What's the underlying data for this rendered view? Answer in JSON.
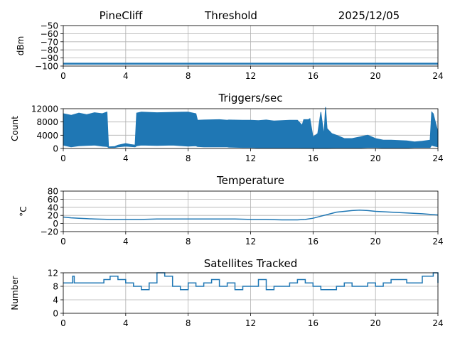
{
  "header": {
    "station": "PineCliff",
    "title": "Threshold",
    "date": "2025/12/05"
  },
  "colors": {
    "series": "#1f77b4",
    "grid": "#b0b0b0",
    "axes": "#000000"
  },
  "chart_data": [
    {
      "type": "line",
      "title": "",
      "ylabel": "dBm",
      "xlabel": "",
      "xlim": [
        0,
        24
      ],
      "ylim": [
        -100,
        -50
      ],
      "xticks": [
        0,
        4,
        8,
        12,
        16,
        20,
        24
      ],
      "yticks": [
        -100,
        -90,
        -80,
        -70,
        -60,
        -50
      ],
      "grid": true,
      "series": [
        {
          "x": [
            0,
            2,
            4,
            6,
            8,
            10,
            12,
            14,
            16,
            18,
            20,
            22,
            24
          ],
          "values": [
            -97,
            -97,
            -97,
            -97,
            -97,
            -97,
            -97,
            -97,
            -97,
            -97,
            -97,
            -97,
            -97
          ]
        }
      ]
    },
    {
      "type": "area",
      "title": "Triggers/sec",
      "ylabel": "Count",
      "xlabel": "",
      "xlim": [
        0,
        24
      ],
      "ylim": [
        0,
        12000
      ],
      "xticks": [
        0,
        4,
        8,
        12,
        16,
        20,
        24
      ],
      "yticks": [
        0,
        4000,
        8000,
        12000
      ],
      "grid": true,
      "series": [
        {
          "x": [
            0,
            0.5,
            1,
            1.5,
            2,
            2.5,
            2.8,
            2.9,
            3.3,
            3.5,
            4,
            4.3,
            4.6,
            4.7,
            5,
            6,
            7,
            8,
            8.5,
            8.6,
            9,
            10,
            10.5,
            10.6,
            11.5,
            12,
            12.5,
            13,
            13.5,
            14,
            14.5,
            15,
            15.3,
            15.4,
            15.7,
            15.8,
            16,
            16.3,
            16.5,
            16.7,
            16.8,
            16.9,
            17.2,
            17.5,
            18,
            18.5,
            19,
            19.5,
            20,
            20.5,
            21,
            21.5,
            22,
            22.5,
            23,
            23.5,
            23.6,
            23.7,
            24
          ],
          "values": [
            10500,
            10000,
            10700,
            10200,
            10800,
            10500,
            11000,
            500,
            600,
            1000,
            1500,
            1200,
            1000,
            10700,
            11000,
            10800,
            10900,
            11000,
            10500,
            8500,
            8600,
            8700,
            8500,
            8600,
            8500,
            8500,
            8400,
            8600,
            8300,
            8400,
            8500,
            8500,
            7000,
            8700,
            8700,
            9000,
            3500,
            4500,
            11000,
            4000,
            12500,
            6000,
            4500,
            4000,
            3000,
            3000,
            3500,
            4000,
            3000,
            2500,
            2500,
            2400,
            2300,
            2000,
            2200,
            2500,
            11000,
            10500,
            5000
          ],
          "lows": [
            1000,
            500,
            800,
            900,
            1000,
            700,
            600,
            300,
            300,
            500,
            700,
            600,
            500,
            800,
            1000,
            900,
            1000,
            700,
            800,
            600,
            500,
            500,
            500,
            400,
            300,
            300,
            200,
            200,
            200,
            200,
            200,
            200,
            100,
            100,
            100,
            100,
            0,
            0,
            0,
            0,
            0,
            0,
            100,
            200,
            200,
            200,
            200,
            300,
            300,
            200,
            200,
            200,
            200,
            300,
            300,
            300,
            1000,
            800,
            500
          ]
        }
      ]
    },
    {
      "type": "line",
      "title": "Temperature",
      "ylabel": "°C",
      "xlabel": "",
      "xlim": [
        0,
        24
      ],
      "ylim": [
        -20,
        80
      ],
      "xticks": [
        0,
        4,
        8,
        12,
        16,
        20,
        24
      ],
      "yticks": [
        -20,
        0,
        20,
        40,
        60,
        80
      ],
      "grid": true,
      "series": [
        {
          "x": [
            0,
            0.5,
            1,
            1.5,
            2,
            3,
            4,
            5,
            6,
            7,
            8,
            9,
            10,
            11,
            12,
            13,
            14,
            15,
            15.5,
            16,
            16.5,
            17,
            17.5,
            18,
            18.5,
            19,
            19.5,
            20,
            21,
            22,
            23,
            24
          ],
          "values": [
            16,
            14,
            13,
            12,
            11,
            10,
            10,
            10,
            11,
            11,
            11,
            11,
            11,
            11,
            10,
            10,
            9,
            9,
            10,
            13,
            18,
            23,
            28,
            30,
            32,
            33,
            32,
            30,
            28,
            26,
            24,
            21
          ]
        }
      ]
    },
    {
      "type": "line",
      "title": "Satellites Tracked",
      "ylabel": "Number",
      "xlabel": "",
      "xlim": [
        0,
        24
      ],
      "ylim": [
        0,
        12
      ],
      "xticks": [
        0,
        4,
        8,
        12,
        16,
        20,
        24
      ],
      "yticks": [
        0,
        4,
        8,
        12
      ],
      "grid": true,
      "series": [
        {
          "x": [
            0,
            0.5,
            0.6,
            0.7,
            1,
            2,
            2.6,
            3,
            3.5,
            4,
            4.5,
            5,
            5.5,
            6,
            6.5,
            7,
            7.5,
            8,
            8.5,
            9,
            9.5,
            10,
            10.5,
            11,
            11.5,
            12,
            12.5,
            13,
            13.5,
            14,
            14.5,
            15,
            15.5,
            16,
            16.5,
            17,
            17.5,
            18,
            18.5,
            19,
            19.5,
            20,
            20.5,
            21,
            21.5,
            22,
            22.5,
            23,
            23.5,
            23.7,
            24
          ],
          "values": [
            9,
            9,
            11,
            9,
            9,
            9,
            10,
            11,
            10,
            9,
            8,
            7,
            9,
            12,
            11,
            8,
            7,
            9,
            8,
            9,
            10,
            8,
            9,
            7,
            8,
            8,
            10,
            7,
            8,
            8,
            9,
            10,
            9,
            8,
            7,
            7,
            8,
            9,
            8,
            8,
            9,
            8,
            9,
            10,
            10,
            9,
            9,
            11,
            11,
            12,
            9
          ]
        }
      ]
    }
  ]
}
